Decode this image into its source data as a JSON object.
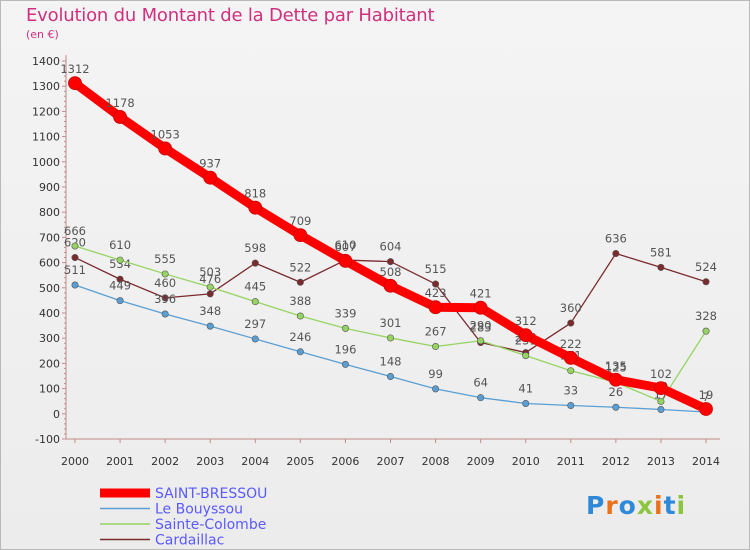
{
  "title": "Evolution du Montant de la Dette par Habitant",
  "subtitle": "(en €)",
  "logo": {
    "text": "Proxiti",
    "colors": [
      "#2e8ad8",
      "#e9721b",
      "#2e8ad8",
      "#8cc63e",
      "#e9721b",
      "#2e8ad8",
      "#8cc63e"
    ]
  },
  "chart_data": {
    "type": "line",
    "x": [
      "2000",
      "2001",
      "2002",
      "2003",
      "2004",
      "2005",
      "2006",
      "2007",
      "2008",
      "2009",
      "2010",
      "2011",
      "2012",
      "2013",
      "2014"
    ],
    "ylim": [
      -100,
      1400
    ],
    "yticks": [
      "-100",
      "0",
      "100",
      "200",
      "300",
      "400",
      "500",
      "600",
      "700",
      "800",
      "900",
      "1000",
      "1100",
      "1200",
      "1300",
      "1400"
    ],
    "grid": false,
    "legend_position": "bottom-left",
    "series": [
      {
        "name": "Cardaillac",
        "color": "#7b2a2e",
        "values": [
          620,
          534,
          460,
          476,
          598,
          522,
          610,
          604,
          515,
          283,
          243,
          360,
          636,
          581,
          524
        ],
        "labels": [
          "620",
          "534",
          "460",
          "476",
          "598",
          "522",
          "610",
          "604",
          "515",
          "283",
          "243",
          "360",
          "636",
          "581",
          "524"
        ]
      },
      {
        "name": "Sainte-Colombe",
        "color": "#95d462",
        "values": [
          666,
          610,
          555,
          503,
          445,
          388,
          339,
          301,
          267,
          290,
          231,
          171,
          125,
          49,
          328
        ],
        "labels": [
          "666",
          "610",
          "555",
          "503",
          "445",
          "388",
          "339",
          "301",
          "267",
          "290",
          "231",
          "171",
          "125",
          "49",
          "328"
        ]
      },
      {
        "name": "Le Bouyssou",
        "color": "#5a9fd4",
        "values": [
          511,
          449,
          396,
          348,
          297,
          246,
          196,
          148,
          99,
          64,
          41,
          33,
          26,
          17,
          7
        ],
        "labels": [
          "511",
          "449",
          "396",
          "348",
          "297",
          "246",
          "196",
          "148",
          "99",
          "64",
          "41",
          "33",
          "26",
          "17",
          "7"
        ]
      },
      {
        "name": "SAINT-BRESSOU",
        "color": "#ff0000",
        "values": [
          1312,
          1178,
          1053,
          937,
          818,
          709,
          607,
          508,
          423,
          421,
          312,
          222,
          135,
          102,
          19
        ],
        "labels": [
          "1312",
          "1178",
          "1053",
          "937",
          "818",
          "709",
          "607",
          "508",
          "423",
          "421",
          "312",
          "222",
          "135",
          "102",
          "19"
        ]
      }
    ],
    "legend": [
      "SAINT-BRESSOU",
      "Le Bouyssou",
      "Sainte-Colombe",
      "Cardaillac"
    ]
  }
}
